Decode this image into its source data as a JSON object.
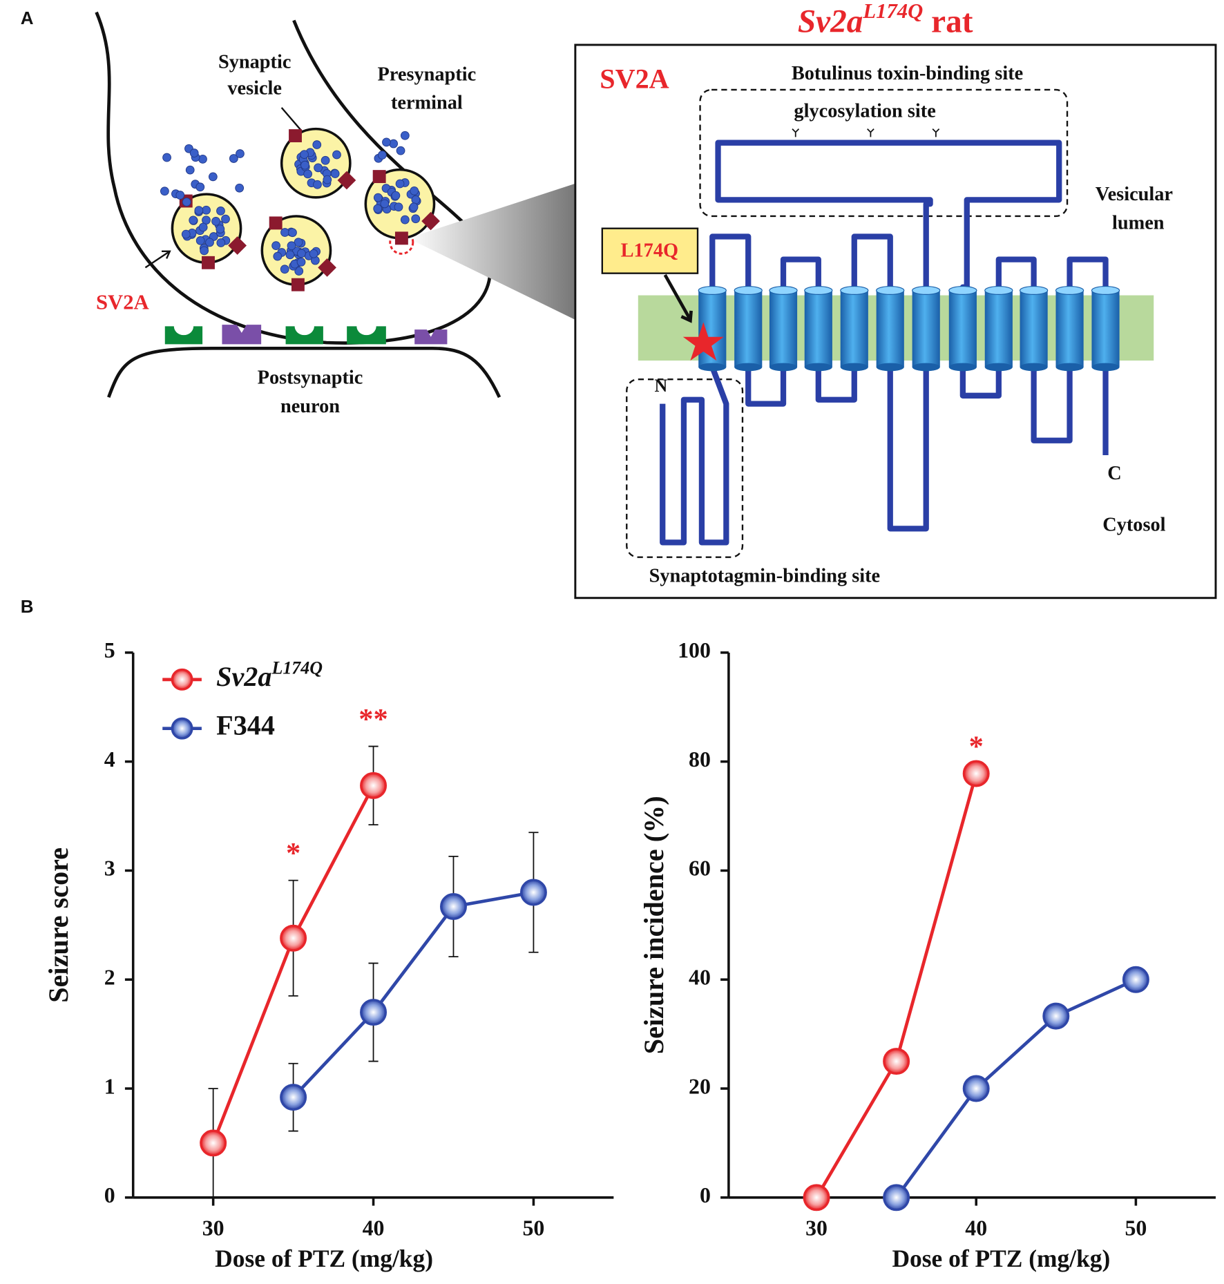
{
  "panel_labels": [
    "A",
    "B"
  ],
  "diagram": {
    "title": [
      "Sv2a",
      "L174Q",
      "rat"
    ],
    "synapse": {
      "vesicle_label": [
        "Synaptic",
        "vesicle"
      ],
      "terminal_label": [
        "Presynaptic",
        "terminal"
      ],
      "protein_label": "SV2A",
      "postsynaptic_label": [
        "Postsynaptic",
        "neuron"
      ]
    },
    "protein": {
      "name": "SV2A",
      "toxin_site": "Botulinus toxin-binding site",
      "glycosylation": "glycosylation site",
      "lumen": [
        "Vesicular",
        "lumen"
      ],
      "mutation": "L174Q",
      "n_terminus": "N",
      "c_terminus": "C",
      "cytosol": "Cytosol",
      "synaptotagmin_site": "Synaptotagmin-binding site"
    }
  },
  "chart_data": [
    {
      "type": "line",
      "ylabel": "Seizure score",
      "xlabel": "Dose of PTZ (mg/kg)",
      "xlim": [
        25,
        55
      ],
      "xticks": [
        30,
        40,
        50
      ],
      "ylim": [
        0,
        5
      ],
      "yticks": [
        0,
        1,
        2,
        3,
        4,
        5
      ],
      "legend": "upper left",
      "series": [
        {
          "name": "Sv2a",
          "name_superscript": "L174Q",
          "color": "#e8262b",
          "x": [
            30,
            35,
            40
          ],
          "values": [
            0.5,
            2.38,
            3.78
          ],
          "errors": [
            0.5,
            0.53,
            0.36
          ]
        },
        {
          "name": "F344",
          "color": "#2f47a8",
          "x": [
            35,
            40,
            45,
            50
          ],
          "values": [
            0.92,
            1.7,
            2.67,
            2.8
          ],
          "errors": [
            0.31,
            0.45,
            0.46,
            0.55
          ]
        }
      ],
      "annotations": [
        {
          "text": "*",
          "x": 35
        },
        {
          "text": "**",
          "x": 40
        }
      ]
    },
    {
      "type": "line",
      "ylabel": "Seizure incidence (%)",
      "xlabel": "Dose of PTZ (mg/kg)",
      "xlim": [
        24.5,
        55
      ],
      "xticks": [
        30,
        40,
        50
      ],
      "ylim": [
        0,
        100
      ],
      "yticks": [
        0,
        20,
        40,
        60,
        80,
        100
      ],
      "series": [
        {
          "name": "Sv2a",
          "name_superscript": "L174Q",
          "color": "#e8262b",
          "x": [
            30,
            35,
            40
          ],
          "values": [
            0,
            25,
            77.8
          ]
        },
        {
          "name": "F344",
          "color": "#2f47a8",
          "x": [
            35,
            40,
            45,
            50
          ],
          "values": [
            0,
            20,
            33.3,
            40
          ]
        }
      ],
      "annotations": [
        {
          "text": "*",
          "x": 40
        }
      ]
    }
  ]
}
